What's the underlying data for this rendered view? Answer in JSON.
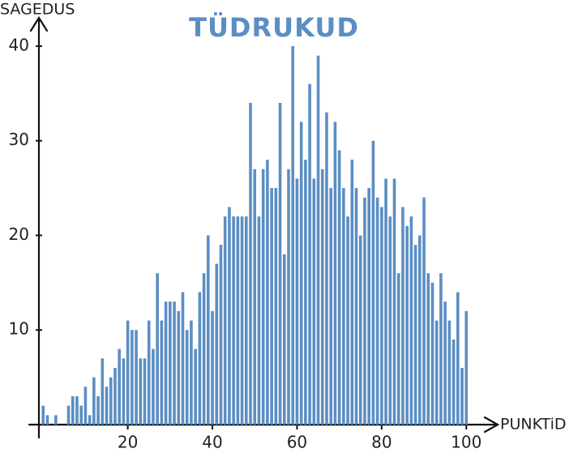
{
  "chart_data": {
    "type": "bar",
    "title": "TÜDRUKUD",
    "y_label": "SAGEDUS",
    "x_label": "PUNKTiD",
    "color": "#5b8ec4",
    "x": [
      0,
      1,
      2,
      3,
      4,
      5,
      6,
      7,
      8,
      9,
      10,
      11,
      12,
      13,
      14,
      15,
      16,
      17,
      18,
      19,
      20,
      21,
      22,
      23,
      24,
      25,
      26,
      27,
      28,
      29,
      30,
      31,
      32,
      33,
      34,
      35,
      36,
      37,
      38,
      39,
      40,
      41,
      42,
      43,
      44,
      45,
      46,
      47,
      48,
      49,
      50,
      51,
      52,
      53,
      54,
      55,
      56,
      57,
      58,
      59,
      60,
      61,
      62,
      63,
      64,
      65,
      66,
      67,
      68,
      69,
      70,
      71,
      72,
      73,
      74,
      75,
      76,
      77,
      78,
      79,
      80,
      81,
      82,
      83,
      84,
      85,
      86,
      87,
      88,
      89,
      90,
      91,
      92,
      93,
      94,
      95,
      96,
      97,
      98,
      99,
      100
    ],
    "values": [
      2,
      1,
      0,
      1,
      0,
      0,
      2,
      3,
      3,
      2,
      4,
      1,
      5,
      3,
      7,
      4,
      5,
      6,
      8,
      7,
      11,
      10,
      10,
      7,
      7,
      11,
      8,
      16,
      11,
      13,
      13,
      13,
      12,
      14,
      10,
      11,
      8,
      14,
      16,
      20,
      12,
      17,
      19,
      22,
      23,
      22,
      22,
      22,
      22,
      34,
      27,
      22,
      27,
      28,
      25,
      25,
      34,
      18,
      27,
      40,
      26,
      32,
      28,
      36,
      26,
      39,
      27,
      33,
      25,
      32,
      29,
      25,
      22,
      28,
      25,
      20,
      24,
      25,
      30,
      24,
      23,
      26,
      22,
      26,
      16,
      23,
      21,
      22,
      19,
      20,
      24,
      16,
      15,
      11,
      16,
      13,
      11,
      9,
      14,
      6,
      12
    ],
    "xlim": [
      -1,
      102
    ],
    "ylim": [
      0,
      42
    ],
    "xticks": [
      20,
      40,
      60,
      80,
      100
    ],
    "yticks": [
      10,
      20,
      30,
      40
    ]
  }
}
